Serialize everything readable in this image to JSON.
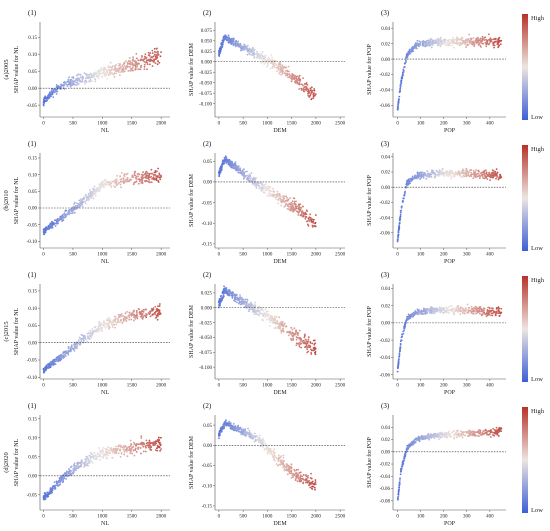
{
  "colorbar": {
    "high_label": "High",
    "low_label": "Low",
    "low_color": "#3d5fd8",
    "mid_color": "#ece5e0",
    "high_color": "#b73129"
  },
  "chart_data": [
    {
      "row_label": "(a)2005",
      "panels": [
        {
          "label": "(1)",
          "type": "scatter",
          "xlabel": "NL",
          "ylabel": "SHAP value for NL",
          "xlim": [
            -60,
            2150
          ],
          "ylim": [
            -0.085,
            0.195
          ],
          "xticks": [
            0,
            500,
            1000,
            1500,
            2000
          ],
          "yticks": [
            -0.05,
            0.0,
            0.05,
            0.1,
            0.15
          ],
          "ytick_labels": [
            "-0.05",
            "0.00",
            "0.05",
            "0.10",
            "0.15"
          ],
          "reference_y": 0,
          "curve": [
            [
              0,
              -0.04
            ],
            [
              200,
              -0.005
            ],
            [
              500,
              0.02
            ],
            [
              1000,
              0.045
            ],
            [
              1500,
              0.07
            ],
            [
              2000,
              0.095
            ]
          ],
          "spread": 0.018
        },
        {
          "label": "(2)",
          "type": "scatter",
          "xlabel": "DEM",
          "ylabel": "SHAP value for DEM",
          "xlim": [
            -80,
            2600
          ],
          "ylim": [
            -0.132,
            0.095
          ],
          "xticks": [
            0,
            500,
            1000,
            1500,
            2000,
            2500
          ],
          "yticks": [
            -0.1,
            -0.075,
            -0.05,
            -0.025,
            0.0,
            0.025,
            0.05,
            0.075
          ],
          "ytick_labels": [
            "-0.100",
            "-0.075",
            "-0.050",
            "-0.025",
            "0.000",
            "0.025",
            "0.050",
            "0.075"
          ],
          "reference_y": 0,
          "curve": [
            [
              0,
              0.02
            ],
            [
              120,
              0.06
            ],
            [
              400,
              0.04
            ],
            [
              800,
              0.015
            ],
            [
              1200,
              -0.01
            ],
            [
              1600,
              -0.04
            ],
            [
              2000,
              -0.085
            ]
          ],
          "spread": 0.012
        },
        {
          "label": "(3)",
          "type": "scatter",
          "xlabel": "POP",
          "ylabel": "SHAP value for POP",
          "xlim": [
            -20,
            470
          ],
          "ylim": [
            -0.075,
            0.048
          ],
          "xticks": [
            0,
            100,
            200,
            300,
            400
          ],
          "yticks": [
            -0.06,
            -0.04,
            -0.02,
            0.0,
            0.02,
            0.04
          ],
          "ytick_labels": [
            "-0.06",
            "-0.04",
            "-0.02",
            "0.00",
            "0.02",
            "0.04"
          ],
          "reference_y": 0,
          "curve": [
            [
              0,
              -0.065
            ],
            [
              15,
              -0.03
            ],
            [
              40,
              0.005
            ],
            [
              80,
              0.018
            ],
            [
              150,
              0.022
            ],
            [
              300,
              0.023
            ],
            [
              450,
              0.022
            ]
          ],
          "spread": 0.005
        }
      ]
    },
    {
      "row_label": "(b)2010",
      "panels": [
        {
          "label": "(1)",
          "type": "scatter",
          "xlabel": "NL",
          "ylabel": "SHAP value for NL",
          "xlim": [
            -60,
            2150
          ],
          "ylim": [
            -0.12,
            0.165
          ],
          "xticks": [
            0,
            500,
            1000,
            1500,
            2000
          ],
          "yticks": [
            -0.1,
            -0.05,
            0.0,
            0.05,
            0.1,
            0.15
          ],
          "ytick_labels": [
            "-0.10",
            "-0.05",
            "0.00",
            "0.05",
            "0.10",
            "0.15"
          ],
          "reference_y": 0,
          "curve": [
            [
              0,
              -0.07
            ],
            [
              300,
              -0.03
            ],
            [
              600,
              0.01
            ],
            [
              1000,
              0.07
            ],
            [
              1500,
              0.09
            ],
            [
              2000,
              0.095
            ]
          ],
          "spread": 0.015
        },
        {
          "label": "(2)",
          "type": "scatter",
          "xlabel": "DEM",
          "ylabel": "SHAP value for DEM",
          "xlim": [
            -80,
            2600
          ],
          "ylim": [
            -0.16,
            0.07
          ],
          "xticks": [
            0,
            500,
            1000,
            1500,
            2000,
            2500
          ],
          "yticks": [
            -0.15,
            -0.1,
            -0.05,
            0.0,
            0.05
          ],
          "ytick_labels": [
            "-0.15",
            "-0.10",
            "-0.05",
            "0.00",
            "0.05"
          ],
          "reference_y": 0,
          "curve": [
            [
              0,
              0.02
            ],
            [
              120,
              0.055
            ],
            [
              400,
              0.03
            ],
            [
              800,
              -0.005
            ],
            [
              1200,
              -0.035
            ],
            [
              1600,
              -0.065
            ],
            [
              2000,
              -0.1
            ]
          ],
          "spread": 0.013
        },
        {
          "label": "(3)",
          "type": "scatter",
          "xlabel": "POP",
          "ylabel": "SHAP value for POP",
          "xlim": [
            -20,
            470
          ],
          "ylim": [
            -0.08,
            0.045
          ],
          "xticks": [
            0,
            100,
            200,
            300,
            400
          ],
          "yticks": [
            -0.06,
            -0.04,
            -0.02,
            0.0,
            0.02,
            0.04
          ],
          "ytick_labels": [
            "-0.06",
            "-0.04",
            "-0.02",
            "0.00",
            "0.02",
            "0.04"
          ],
          "reference_y": 0,
          "curve": [
            [
              0,
              -0.07
            ],
            [
              15,
              -0.03
            ],
            [
              40,
              0.005
            ],
            [
              80,
              0.015
            ],
            [
              150,
              0.018
            ],
            [
              300,
              0.018
            ],
            [
              450,
              0.016
            ]
          ],
          "spread": 0.005
        }
      ]
    },
    {
      "row_label": "(c)2015",
      "panels": [
        {
          "label": "(1)",
          "type": "scatter",
          "xlabel": "NL",
          "ylabel": "SHAP value for NL",
          "xlim": [
            -60,
            2150
          ],
          "ylim": [
            -0.105,
            0.17
          ],
          "xticks": [
            0,
            500,
            1000,
            1500,
            2000
          ],
          "yticks": [
            -0.1,
            -0.05,
            0.0,
            0.05,
            0.1,
            0.15
          ],
          "ytick_labels": [
            "-0.10",
            "-0.05",
            "0.00",
            "0.05",
            "0.10",
            "0.15"
          ],
          "reference_y": 0,
          "curve": [
            [
              0,
              -0.08
            ],
            [
              300,
              -0.04
            ],
            [
              600,
              0.0
            ],
            [
              1000,
              0.05
            ],
            [
              1500,
              0.08
            ],
            [
              2000,
              0.09
            ]
          ],
          "spread": 0.014
        },
        {
          "label": "(2)",
          "type": "scatter",
          "xlabel": "DEM",
          "ylabel": "SHAP value for DEM",
          "xlim": [
            -80,
            2600
          ],
          "ylim": [
            -0.12,
            0.04
          ],
          "xticks": [
            0,
            500,
            1000,
            1500,
            2000,
            2500
          ],
          "yticks": [
            -0.1,
            -0.075,
            -0.05,
            -0.025,
            0.0,
            0.025
          ],
          "ytick_labels": [
            "-0.100",
            "-0.075",
            "-0.050",
            "-0.025",
            "0.000",
            "0.025"
          ],
          "reference_y": 0,
          "curve": [
            [
              0,
              0.005
            ],
            [
              120,
              0.03
            ],
            [
              400,
              0.015
            ],
            [
              800,
              -0.005
            ],
            [
              1200,
              -0.025
            ],
            [
              1600,
              -0.05
            ],
            [
              2000,
              -0.07
            ]
          ],
          "spread": 0.01
        },
        {
          "label": "(3)",
          "type": "scatter",
          "xlabel": "POP",
          "ylabel": "SHAP value for POP",
          "xlim": [
            -20,
            470
          ],
          "ylim": [
            -0.065,
            0.045
          ],
          "xticks": [
            0,
            100,
            200,
            300,
            400
          ],
          "yticks": [
            -0.06,
            -0.04,
            -0.02,
            0.0,
            0.02,
            0.04
          ],
          "ytick_labels": [
            "-0.06",
            "-0.04",
            "-0.02",
            "0.00",
            "0.02",
            "0.04"
          ],
          "reference_y": 0,
          "curve": [
            [
              0,
              -0.055
            ],
            [
              15,
              -0.02
            ],
            [
              40,
              0.005
            ],
            [
              80,
              0.012
            ],
            [
              150,
              0.015
            ],
            [
              300,
              0.015
            ],
            [
              450,
              0.013
            ]
          ],
          "spread": 0.004
        }
      ]
    },
    {
      "row_label": "(d)2020",
      "panels": [
        {
          "label": "(1)",
          "type": "scatter",
          "xlabel": "NL",
          "ylabel": "SHAP value for NL",
          "xlim": [
            -60,
            2150
          ],
          "ylim": [
            -0.09,
            0.16
          ],
          "xticks": [
            0,
            500,
            1000,
            1500,
            2000
          ],
          "yticks": [
            -0.05,
            0.0,
            0.05,
            0.1,
            0.15
          ],
          "ytick_labels": [
            "-0.05",
            "0.00",
            "0.05",
            "0.10",
            "0.15"
          ],
          "reference_y": 0,
          "curve": [
            [
              0,
              -0.06
            ],
            [
              300,
              -0.01
            ],
            [
              600,
              0.03
            ],
            [
              1000,
              0.06
            ],
            [
              1500,
              0.075
            ],
            [
              2000,
              0.085
            ]
          ],
          "spread": 0.015
        },
        {
          "label": "(2)",
          "type": "scatter",
          "xlabel": "DEM",
          "ylabel": "SHAP value for DEM",
          "xlim": [
            -80,
            2600
          ],
          "ylim": [
            -0.16,
            0.075
          ],
          "xticks": [
            0,
            500,
            1000,
            1500,
            2000,
            2500
          ],
          "yticks": [
            -0.15,
            -0.1,
            -0.05,
            0.0,
            0.05
          ],
          "ytick_labels": [
            "-0.15",
            "-0.10",
            "-0.05",
            "0.00",
            "0.05"
          ],
          "reference_y": 0,
          "curve": [
            [
              0,
              0.025
            ],
            [
              120,
              0.055
            ],
            [
              400,
              0.04
            ],
            [
              800,
              0.015
            ],
            [
              1200,
              -0.03
            ],
            [
              1600,
              -0.075
            ],
            [
              2000,
              -0.1
            ]
          ],
          "spread": 0.012
        },
        {
          "label": "(3)",
          "type": "scatter",
          "xlabel": "POP",
          "ylabel": "SHAP value for POP",
          "xlim": [
            -20,
            470
          ],
          "ylim": [
            -0.095,
            0.06
          ],
          "xticks": [
            0,
            100,
            200,
            300,
            400
          ],
          "yticks": [
            -0.08,
            -0.06,
            -0.04,
            -0.02,
            0.0,
            0.02,
            0.04
          ],
          "ytick_labels": [
            "-0.08",
            "-0.06",
            "-0.04",
            "-0.02",
            "0.00",
            "0.02",
            "0.04"
          ],
          "reference_y": 0,
          "curve": [
            [
              0,
              -0.08
            ],
            [
              15,
              -0.03
            ],
            [
              40,
              0.005
            ],
            [
              80,
              0.02
            ],
            [
              150,
              0.026
            ],
            [
              300,
              0.03
            ],
            [
              450,
              0.033
            ]
          ],
          "spread": 0.005
        }
      ]
    }
  ]
}
